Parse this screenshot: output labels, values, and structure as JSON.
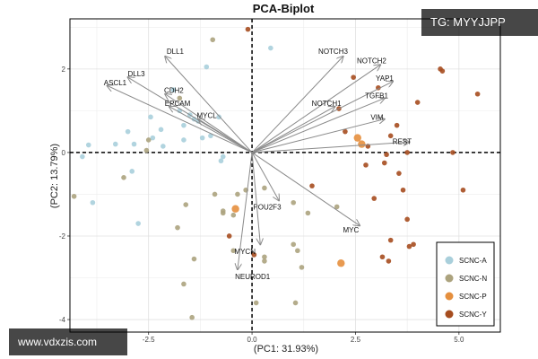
{
  "watermarks": {
    "top": "TG: MYYJJPP",
    "bottom": "www.vdxzis.com"
  },
  "chart_data": {
    "type": "scatter",
    "title": "PCA-Biplot",
    "xlabel": "(PC1: 31.93%)",
    "ylabel": "(PC2: 13.79%)",
    "xlim": [
      -4.4,
      6.0
    ],
    "ylim": [
      -4.3,
      3.2
    ],
    "x_ticks": [
      {
        "value": -2.5,
        "label": "-2.5"
      },
      {
        "value": 0.0,
        "label": "0.0"
      },
      {
        "value": 2.5,
        "label": "2.5"
      },
      {
        "value": 5.0,
        "label": "5.0"
      }
    ],
    "y_ticks": [
      {
        "value": -4,
        "label": "-4"
      },
      {
        "value": -2,
        "label": "-2"
      },
      {
        "value": 0,
        "label": "0"
      },
      {
        "value": 2,
        "label": "2"
      }
    ],
    "grid": true,
    "reference_lines": {
      "x": 0,
      "y": 0,
      "style": "dashed"
    },
    "legend": {
      "placement": "bottom-right",
      "entries": [
        {
          "name": "SCNC-A",
          "color": "#a9cfdb"
        },
        {
          "name": "SCNC-N",
          "color": "#aca37e"
        },
        {
          "name": "SCNC-P",
          "color": "#e58f3e"
        },
        {
          "name": "SCNC-Y",
          "color": "#a64d1f"
        }
      ]
    },
    "loadings": [
      {
        "name": "DLL1",
        "x": -2.1,
        "y": 2.3
      },
      {
        "name": "DLL3",
        "x": -3.0,
        "y": 1.8
      },
      {
        "name": "ASCL1",
        "x": -3.5,
        "y": 1.6
      },
      {
        "name": "CDH2",
        "x": -2.1,
        "y": 1.4
      },
      {
        "name": "EPCAM",
        "x": -2.0,
        "y": 1.1
      },
      {
        "name": "MYCL",
        "x": -1.3,
        "y": 0.8
      },
      {
        "name": "NOTCH3",
        "x": 2.2,
        "y": 2.3
      },
      {
        "name": "NOTCH2",
        "x": 3.1,
        "y": 2.1
      },
      {
        "name": "YAP1",
        "x": 3.4,
        "y": 1.7
      },
      {
        "name": "TGFB1",
        "x": 3.2,
        "y": 1.3
      },
      {
        "name": "NOTCH1",
        "x": 2.0,
        "y": 1.1
      },
      {
        "name": "VIM",
        "x": 3.2,
        "y": 0.8
      },
      {
        "name": "REST",
        "x": 3.8,
        "y": 0.25
      },
      {
        "name": "POU2F3",
        "x": 0.65,
        "y": -1.15
      },
      {
        "name": "MYC",
        "x": 2.6,
        "y": -1.75
      },
      {
        "name": "MYCN",
        "x": 0.2,
        "y": -2.2
      },
      {
        "name": "NEUROD1",
        "x": -0.35,
        "y": -2.8
      }
    ],
    "series": [
      {
        "name": "SCNC-A",
        "color": "#a9cfdb",
        "points": [
          [
            0.45,
            2.5
          ],
          [
            -1.1,
            2.05
          ],
          [
            -1.9,
            1.5
          ],
          [
            -1.75,
            1.0
          ],
          [
            -1.4,
            0.8
          ],
          [
            -1.3,
            0.75
          ],
          [
            -1.5,
            0.9
          ],
          [
            -0.8,
            0.85
          ],
          [
            -1.65,
            0.65
          ],
          [
            -2.2,
            0.55
          ],
          [
            -3.0,
            0.5
          ],
          [
            -3.3,
            0.2
          ],
          [
            -2.85,
            0.2
          ],
          [
            -2.4,
            0.35
          ],
          [
            -2.15,
            0.15
          ],
          [
            -1.65,
            0.3
          ],
          [
            -1.2,
            0.35
          ],
          [
            -1.0,
            0.4
          ],
          [
            -2.9,
            -0.45
          ],
          [
            -0.75,
            -0.2
          ],
          [
            -0.7,
            -0.1
          ],
          [
            -3.85,
            -1.2
          ],
          [
            -2.75,
            -1.7
          ],
          [
            -3.95,
            0.18
          ],
          [
            -4.1,
            -0.1
          ],
          [
            -2.45,
            0.85
          ]
        ]
      },
      {
        "name": "SCNC-N",
        "color": "#aca37e",
        "points": [
          [
            -0.95,
            2.7
          ],
          [
            -1.75,
            1.3
          ],
          [
            -2.5,
            0.3
          ],
          [
            -2.55,
            0.05
          ],
          [
            -3.1,
            -0.6
          ],
          [
            -4.3,
            -1.05
          ],
          [
            -1.6,
            -1.25
          ],
          [
            -0.9,
            -1.0
          ],
          [
            -0.45,
            -1.5
          ],
          [
            -0.35,
            -1.0
          ],
          [
            -0.15,
            -0.9
          ],
          [
            -0.7,
            -1.45
          ],
          [
            -1.8,
            -1.8
          ],
          [
            -1.65,
            -3.15
          ],
          [
            -1.4,
            -2.55
          ],
          [
            -1.45,
            -3.95
          ],
          [
            -0.45,
            -2.35
          ],
          [
            0.3,
            -0.85
          ],
          [
            1.0,
            -1.2
          ],
          [
            1.35,
            -1.45
          ],
          [
            0.3,
            -2.5
          ],
          [
            1.0,
            -2.2
          ],
          [
            1.1,
            -2.35
          ],
          [
            1.2,
            -2.75
          ],
          [
            0.3,
            -2.6
          ],
          [
            0.1,
            -3.6
          ],
          [
            1.05,
            -3.6
          ],
          [
            2.05,
            -1.3
          ],
          [
            -0.7,
            -1.4
          ]
        ]
      },
      {
        "name": "SCNC-P",
        "color": "#e58f3e",
        "points": [
          [
            2.55,
            0.35
          ],
          [
            2.65,
            0.2
          ],
          [
            2.15,
            -2.65
          ],
          [
            -0.4,
            -1.35
          ]
        ]
      },
      {
        "name": "SCNC-Y",
        "color": "#a64d1f",
        "points": [
          [
            -0.1,
            2.95
          ],
          [
            4.55,
            2.0
          ],
          [
            4.6,
            1.95
          ],
          [
            5.45,
            1.4
          ],
          [
            4.0,
            1.2
          ],
          [
            3.05,
            1.55
          ],
          [
            2.45,
            1.8
          ],
          [
            2.1,
            1.05
          ],
          [
            3.5,
            0.65
          ],
          [
            3.35,
            0.4
          ],
          [
            2.8,
            0.15
          ],
          [
            2.25,
            0.5
          ],
          [
            4.85,
            0.0
          ],
          [
            3.75,
            0.0
          ],
          [
            3.25,
            -0.05
          ],
          [
            3.2,
            -0.25
          ],
          [
            2.75,
            -0.3
          ],
          [
            3.55,
            -0.5
          ],
          [
            5.1,
            -0.9
          ],
          [
            3.65,
            -0.9
          ],
          [
            3.75,
            -1.6
          ],
          [
            3.35,
            -2.1
          ],
          [
            3.15,
            -2.5
          ],
          [
            3.3,
            -2.6
          ],
          [
            0.05,
            -2.45
          ],
          [
            1.45,
            -0.8
          ],
          [
            -0.55,
            -2.0
          ],
          [
            2.95,
            -1.1
          ],
          [
            3.9,
            -2.2
          ],
          [
            3.8,
            -2.25
          ]
        ]
      }
    ]
  }
}
